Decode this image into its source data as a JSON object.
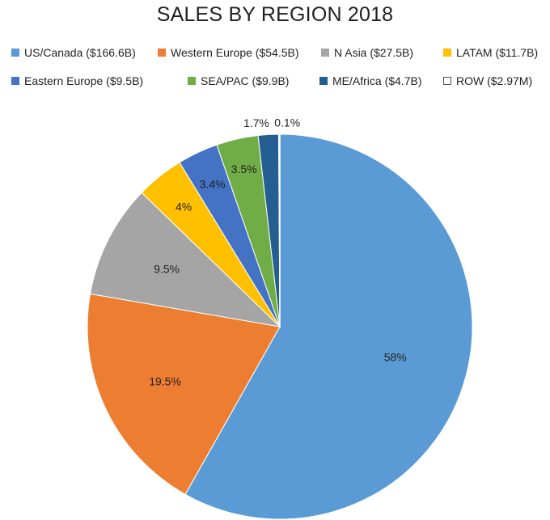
{
  "chart_data": {
    "type": "pie",
    "title": "SALES BY REGION 2018",
    "legend_position": "top",
    "slices": [
      {
        "name": "US/Canada ($166.6B)",
        "value": 58,
        "label": "58%",
        "color": "#5b9bd5"
      },
      {
        "name": "Western Europe ($54.5B)",
        "value": 19.5,
        "label": "19.5%",
        "color": "#ed7d31"
      },
      {
        "name": "N Asia ($27.5B)",
        "value": 9.5,
        "label": "9.5%",
        "color": "#a5a5a5"
      },
      {
        "name": "LATAM ($11.7B)",
        "value": 4,
        "label": "4%",
        "color": "#ffc000"
      },
      {
        "name": "Eastern Europe ($9.5B)",
        "value": 3.4,
        "label": "3.4%",
        "color": "#4472c4"
      },
      {
        "name": "SEA/PAC ($9.9B)",
        "value": 3.5,
        "label": "3.5%",
        "color": "#70ad47"
      },
      {
        "name": "ME/Africa ($4.7B)",
        "value": 1.7,
        "label": "1.7%",
        "color": "#255e91"
      },
      {
        "name": "ROW ($2.97M)",
        "value": 0.1,
        "label": "0.1%",
        "color": "#ffffff"
      }
    ]
  }
}
